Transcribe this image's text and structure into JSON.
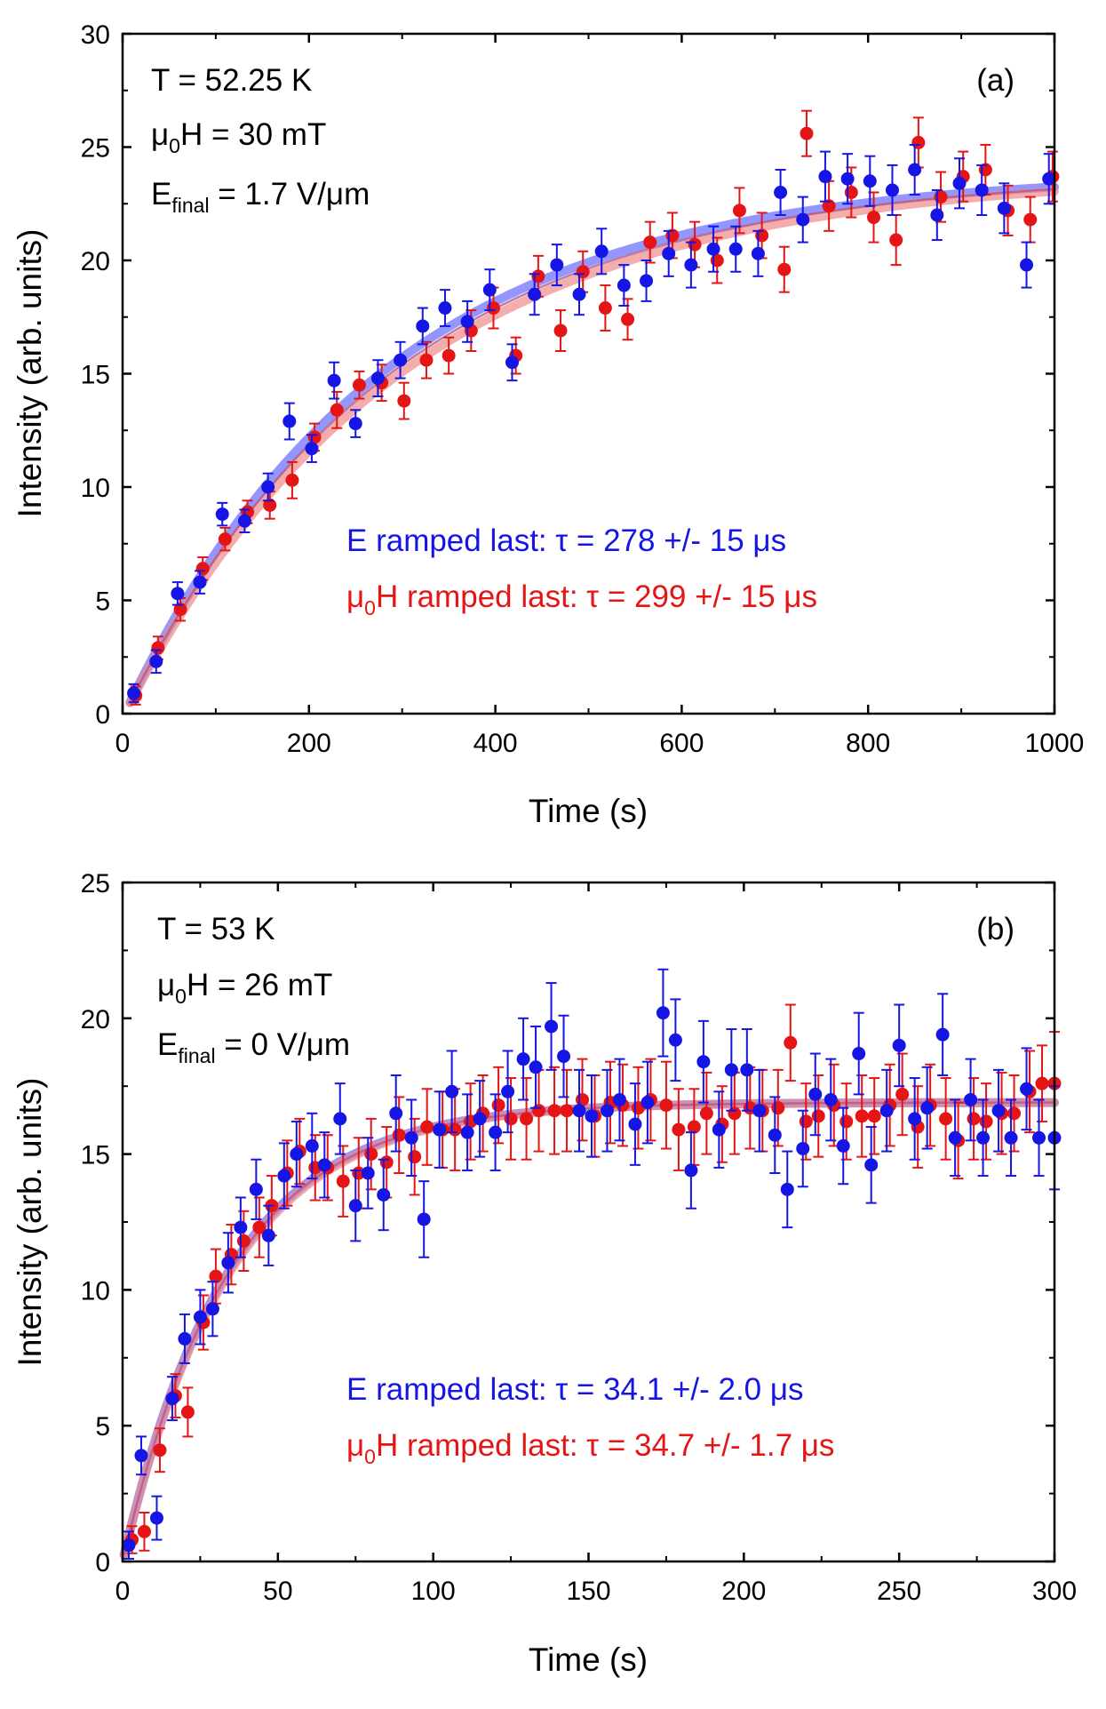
{
  "colors": {
    "blue": "#1515e6",
    "red": "#e61515",
    "blue_fit": "#6f73ff",
    "red_fit": "#f08a8a",
    "fit_overlap": "#b05a88",
    "axis": "#000000"
  },
  "chart_data": [
    {
      "type": "scatter",
      "panel_label": "(a)",
      "annotation": {
        "line1": "T = 52.25 K",
        "line2_prefix": "μ",
        "line2_sub": "0",
        "line2_rest": "H = 30 mT",
        "line3_prefix": "E",
        "line3_sub": "final",
        "line3_rest": " = 1.7 V/μm"
      },
      "legend": {
        "blue_text": "E ramped last:  τ = 278 +/- 15 μs",
        "red_prefix": "μ",
        "red_sub": "0",
        "red_rest": "H ramped last:  τ = 299 +/- 15 μs"
      },
      "xlabel": "Time (s)",
      "ylabel": "Intensity (arb. units)",
      "xlim": [
        0,
        1000
      ],
      "ylim": [
        0,
        30
      ],
      "xticks": [
        0,
        200,
        400,
        600,
        800,
        1000
      ],
      "yticks": [
        0,
        5,
        10,
        15,
        20,
        25,
        30
      ],
      "fit": {
        "A": 23.9,
        "t0": 2,
        "tau_blue": 278,
        "tau_red": 299,
        "x_start": 8
      },
      "series": [
        {
          "name": "E ramped last",
          "color": "blue",
          "x": [
            12,
            36,
            59,
            83,
            107,
            131,
            156,
            179,
            203,
            227,
            250,
            274,
            298,
            322,
            346,
            370,
            394,
            418,
            442,
            466,
            490,
            514,
            538,
            562,
            586,
            610,
            634,
            658,
            682,
            706,
            730,
            754,
            778,
            802,
            826,
            850,
            874,
            898,
            922,
            946,
            970,
            994
          ],
          "y": [
            0.9,
            2.3,
            5.3,
            5.8,
            8.8,
            8.5,
            10.0,
            12.9,
            11.7,
            14.7,
            12.8,
            14.8,
            15.6,
            17.1,
            17.9,
            17.3,
            18.7,
            15.5,
            18.5,
            19.8,
            18.5,
            20.4,
            18.9,
            19.1,
            20.3,
            19.8,
            20.5,
            20.5,
            20.3,
            23.0,
            21.8,
            23.7,
            23.6,
            23.5,
            23.1,
            24.0,
            22.0,
            23.4,
            23.1,
            22.3,
            19.8,
            23.6
          ],
          "err": [
            0.4,
            0.5,
            0.5,
            0.5,
            0.5,
            0.5,
            0.6,
            0.8,
            0.6,
            0.8,
            0.6,
            0.8,
            0.8,
            0.8,
            0.8,
            0.9,
            0.9,
            0.8,
            0.9,
            0.9,
            0.9,
            1.0,
            0.9,
            0.9,
            1.0,
            1.0,
            1.0,
            1.0,
            1.0,
            1.0,
            1.0,
            1.1,
            1.1,
            1.1,
            1.1,
            1.1,
            1.1,
            1.1,
            1.1,
            1.1,
            1.0,
            1.1
          ]
        },
        {
          "name": "μ0H ramped last",
          "color": "red",
          "x": [
            14,
            38,
            62,
            86,
            110,
            134,
            158,
            182,
            206,
            230,
            254,
            278,
            302,
            326,
            350,
            374,
            398,
            422,
            446,
            470,
            494,
            518,
            542,
            566,
            590,
            614,
            638,
            662,
            686,
            710,
            734,
            758,
            782,
            806,
            830,
            854,
            878,
            902,
            926,
            950,
            974,
            998
          ],
          "y": [
            0.8,
            2.9,
            4.6,
            6.4,
            7.7,
            8.9,
            9.2,
            10.3,
            12.2,
            13.4,
            14.5,
            14.6,
            13.8,
            15.6,
            15.8,
            16.9,
            17.9,
            15.8,
            19.3,
            16.9,
            19.5,
            17.9,
            17.4,
            20.8,
            21.1,
            20.7,
            20.0,
            22.2,
            21.1,
            19.6,
            25.6,
            22.4,
            23.0,
            21.9,
            20.9,
            25.2,
            22.8,
            23.7,
            24.0,
            22.2,
            21.8,
            23.7
          ]
        }
      ]
    },
    {
      "type": "scatter",
      "panel_label": "(b)",
      "annotation": {
        "line1": "T = 53 K",
        "line2_prefix": "μ",
        "line2_sub": "0",
        "line2_rest": "H = 26 mT",
        "line3_prefix": "E",
        "line3_sub": "final",
        "line3_rest": " = 0 V/μm"
      },
      "legend": {
        "blue_text": "E ramped last:  τ = 34.1 +/- 2.0 μs",
        "red_prefix": "μ",
        "red_sub": "0",
        "red_rest": "H ramped last:  τ = 34.7 +/- 1.7 μs"
      },
      "xlabel": "Time (s)",
      "ylabel": "Intensity (arb. units)",
      "xlim": [
        0,
        300
      ],
      "ylim": [
        0,
        25
      ],
      "xticks": [
        0,
        50,
        100,
        150,
        200,
        250,
        300
      ],
      "yticks": [
        0,
        5,
        10,
        15,
        20,
        25
      ],
      "fit": {
        "A": 16.9,
        "t0": 0,
        "tau_blue": 34.1,
        "tau_red": 34.7,
        "x_start": 0.5
      },
      "series": [
        {
          "name": "E ramped last",
          "color": "blue",
          "x": [
            2,
            6,
            11,
            16,
            20,
            25,
            29,
            34,
            38,
            43,
            47,
            52,
            56,
            61,
            65,
            70,
            75,
            79,
            84,
            88,
            93,
            97,
            102,
            106,
            111,
            115,
            120,
            124,
            129,
            133,
            138,
            142,
            147,
            151,
            156,
            160,
            165,
            169,
            174,
            178,
            183,
            187,
            192,
            196,
            201,
            205,
            210,
            214,
            219,
            223,
            228,
            232,
            237,
            241,
            246,
            250,
            255,
            259,
            264,
            268,
            273,
            277,
            282,
            286,
            291,
            295,
            300
          ],
          "y": [
            0.6,
            3.9,
            1.6,
            6.0,
            8.2,
            9.0,
            9.3,
            11.0,
            12.3,
            13.7,
            12.0,
            14.2,
            15.0,
            15.3,
            14.6,
            16.3,
            13.1,
            14.3,
            13.5,
            16.5,
            15.6,
            12.6,
            15.9,
            17.3,
            15.8,
            16.3,
            15.8,
            17.3,
            18.5,
            18.2,
            19.7,
            18.6,
            16.6,
            16.4,
            16.6,
            17.0,
            16.1,
            16.9,
            20.2,
            19.2,
            14.4,
            18.4,
            15.9,
            18.1,
            18.1,
            16.6,
            15.7,
            13.7,
            15.2,
            17.2,
            17.0,
            15.3,
            18.7,
            14.6,
            16.6,
            19.0,
            16.3,
            16.7,
            19.4,
            15.6,
            17.0,
            15.6,
            16.6,
            15.6,
            17.4,
            15.6,
            15.6
          ],
          "err": [
            0.5,
            0.7,
            0.8,
            0.8,
            0.9,
            1.0,
            1.0,
            1.1,
            1.1,
            1.1,
            1.1,
            1.2,
            1.2,
            1.2,
            1.2,
            1.3,
            1.3,
            1.3,
            1.3,
            1.4,
            1.4,
            1.4,
            1.4,
            1.5,
            1.4,
            1.4,
            1.4,
            1.5,
            1.5,
            1.5,
            1.6,
            1.5,
            1.5,
            1.5,
            1.5,
            1.5,
            1.5,
            1.5,
            1.6,
            1.5,
            1.4,
            1.5,
            1.4,
            1.5,
            1.5,
            1.5,
            1.4,
            1.4,
            1.4,
            1.5,
            1.5,
            1.4,
            1.5,
            1.4,
            1.5,
            1.5,
            1.5,
            1.5,
            1.5,
            1.4,
            1.5,
            1.4,
            1.5,
            1.4,
            1.5,
            1.4,
            1.9
          ]
        },
        {
          "name": "μ0H ramped last",
          "color": "red",
          "x": [
            3,
            7,
            12,
            17,
            21,
            26,
            30,
            35,
            39,
            44,
            48,
            53,
            57,
            62,
            66,
            71,
            76,
            80,
            85,
            89,
            94,
            98,
            103,
            107,
            112,
            116,
            121,
            125,
            130,
            134,
            139,
            143,
            148,
            152,
            157,
            161,
            166,
            170,
            175,
            179,
            184,
            188,
            193,
            197,
            202,
            206,
            211,
            215,
            220,
            224,
            229,
            233,
            238,
            242,
            247,
            251,
            256,
            260,
            265,
            269,
            274,
            278,
            283,
            287,
            292,
            296,
            300
          ],
          "y": [
            0.8,
            1.1,
            4.1,
            6.1,
            5.5,
            8.8,
            10.5,
            11.3,
            11.8,
            12.3,
            13.1,
            14.3,
            15.1,
            14.5,
            14.5,
            14.0,
            14.3,
            15.0,
            14.7,
            15.7,
            14.9,
            16.0,
            15.9,
            15.9,
            16.2,
            16.5,
            16.8,
            16.3,
            16.3,
            16.6,
            16.6,
            16.6,
            17.0,
            16.4,
            16.9,
            16.8,
            16.7,
            17.0,
            16.8,
            15.9,
            16.0,
            16.5,
            16.1,
            16.5,
            16.7,
            16.6,
            16.7,
            19.1,
            16.2,
            16.4,
            16.8,
            16.2,
            16.4,
            16.4,
            16.8,
            17.2,
            16.0,
            16.8,
            16.3,
            15.5,
            16.3,
            16.2,
            16.5,
            16.5,
            17.3,
            17.6,
            17.6
          ]
        }
      ]
    }
  ]
}
